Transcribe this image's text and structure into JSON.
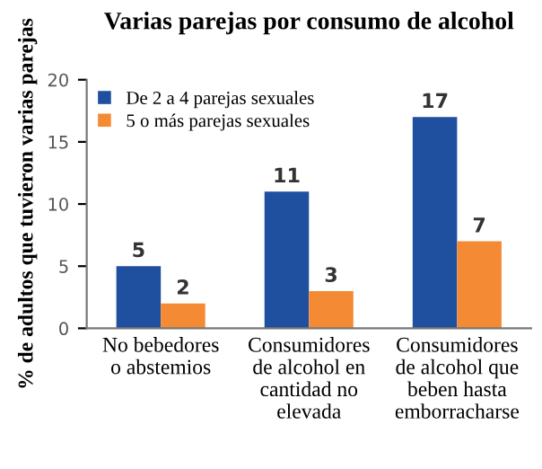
{
  "chart_data": {
    "type": "bar",
    "title": "Varias parejas por consumo de alcohol",
    "ylabel": "% de adultos que tuvieron varias parejas",
    "categories": [
      "No bebedores\no abstemios",
      "Consumidores\nde alcohol en\ncantidad no\nelevada",
      "Consumidores\nde alcohol que\nbeben hasta\nemborracharse"
    ],
    "series": [
      {
        "name": "De 2 a 4 parejas sexuales",
        "color": "#1f4f9f",
        "values": [
          5,
          11,
          17
        ]
      },
      {
        "name": "5 o más parejas sexuales",
        "color": "#f58a35",
        "values": [
          2,
          3,
          7
        ]
      }
    ],
    "ylim": [
      0,
      20
    ],
    "yticks": [
      0,
      5,
      10,
      15,
      20
    ],
    "grid": false,
    "legend": "top left",
    "data_labels": true
  }
}
